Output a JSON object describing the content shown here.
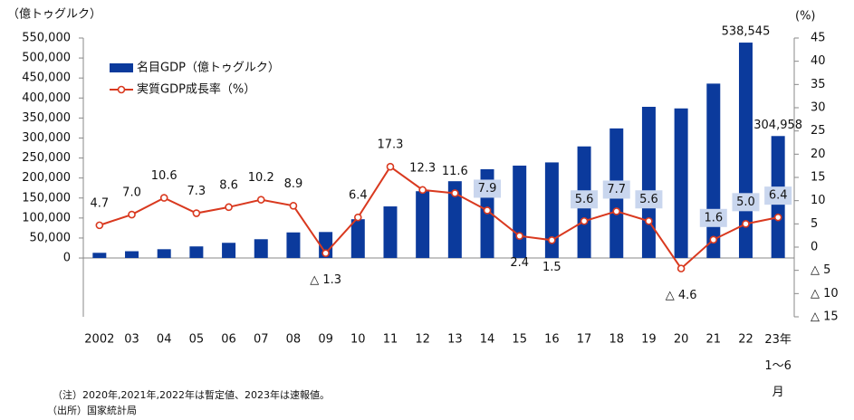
{
  "chart_data": {
    "type": "bar-line",
    "y_label": "（億トゥグルク）",
    "y2_label": "(%)",
    "categories": [
      "2002",
      "03",
      "04",
      "05",
      "06",
      "07",
      "08",
      "09",
      "10",
      "11",
      "12",
      "13",
      "14",
      "15",
      "16",
      "17",
      "18",
      "19",
      "20",
      "21",
      "22",
      "23年\n1～6\n月"
    ],
    "series": [
      {
        "name": "名目GDP（億トゥグルク）",
        "type": "bar",
        "color": "#0b3a9c",
        "values": [
          13000,
          17000,
          22000,
          29000,
          38000,
          47000,
          64000,
          65000,
          97000,
          129000,
          167000,
          192000,
          222000,
          231000,
          239000,
          279000,
          324000,
          378000,
          374000,
          436000,
          538545,
          304958
        ],
        "value_labels": [
          null,
          null,
          null,
          null,
          null,
          null,
          null,
          null,
          null,
          null,
          null,
          null,
          null,
          null,
          null,
          null,
          null,
          null,
          null,
          null,
          "538,545",
          "304,958"
        ]
      },
      {
        "name": "実質GDP成長率（%）",
        "type": "line",
        "axis": "y2",
        "color": "#d9391f",
        "values": [
          4.7,
          7.0,
          10.6,
          7.3,
          8.6,
          10.2,
          8.9,
          -1.3,
          6.4,
          17.3,
          12.3,
          11.6,
          7.9,
          2.4,
          1.5,
          5.6,
          7.7,
          5.6,
          -4.6,
          1.6,
          5.0,
          6.4
        ],
        "value_labels": [
          "4.7",
          "7.0",
          "10.6",
          "7.3",
          "8.6",
          "10.2",
          "8.9",
          "△ 1.3",
          "6.4",
          "17.3",
          "12.3",
          "11.6",
          "7.9",
          "2.4",
          "1.5",
          "5.6",
          "7.7",
          "5.6",
          "△ 4.6",
          "1.6",
          "5.0",
          "6.4"
        ]
      }
    ],
    "ylim": [
      -147000,
      550000
    ],
    "yticks": [
      0,
      {
        "value": 50000,
        "label": "50,000"
      },
      {
        "value": 100000,
        "label": "100,000"
      },
      {
        "value": 150000,
        "label": "150,000"
      },
      {
        "value": 200000,
        "label": "200,000"
      },
      {
        "value": 250000,
        "label": "250,000"
      },
      {
        "value": 300000,
        "label": "300,000"
      },
      {
        "value": 350000,
        "label": "350,000"
      },
      {
        "value": 400000,
        "label": "400,000"
      },
      {
        "value": 450000,
        "label": "450,000"
      },
      {
        "value": 500000,
        "label": "500,000"
      },
      {
        "value": 550000,
        "label": "550,000"
      }
    ],
    "y2lim": [
      -15,
      45
    ],
    "y2ticks": [
      {
        "value": -15,
        "label": "△ 15"
      },
      {
        "value": -10,
        "label": "△ 10"
      },
      {
        "value": -5,
        "label": "△ 5"
      },
      0,
      5,
      10,
      15,
      20,
      25,
      30,
      35,
      40,
      45
    ],
    "notes": [
      "（注）2020年,2021年,2022年は暫定値、2023年は速報値。",
      "（出所）国家統計局"
    ]
  }
}
